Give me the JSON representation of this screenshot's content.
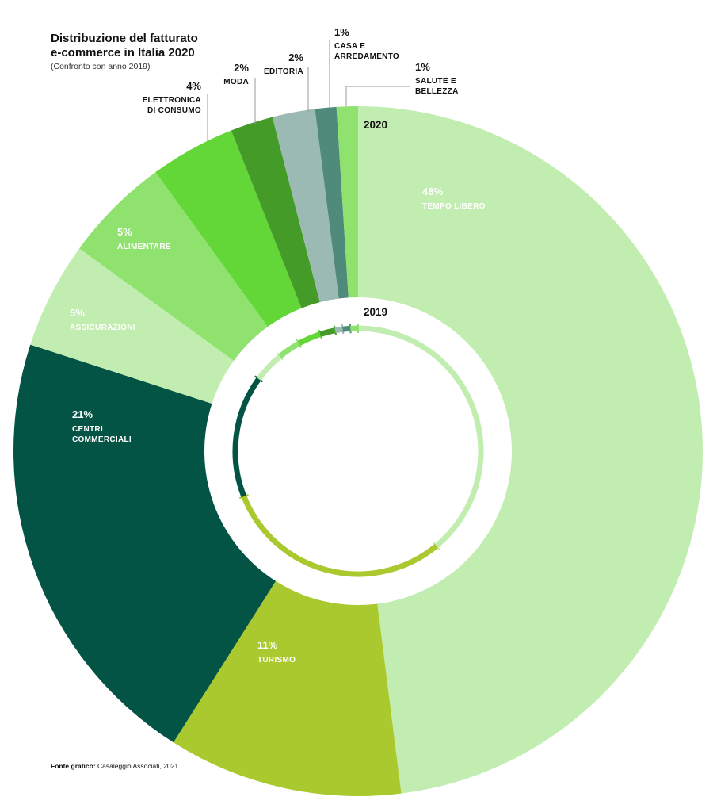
{
  "title_line1": "Distribuzione del fatturato",
  "title_line2": "e-commerce in Italia 2020",
  "subtitle": "(Confronto con anno 2019)",
  "source_label": "Fonte grafico:",
  "source_text": "Casaleggio Associati, 2021.",
  "chart_data": {
    "type": "pie",
    "variant": "donut",
    "outer_ring_label": "2020",
    "inner_ring_label": "2019",
    "slices_2020": [
      {
        "label": "TEMPO LIBERO",
        "pct_label": "48%",
        "value": 48,
        "color": "#c2edb0",
        "text_color": "#ffffff"
      },
      {
        "label": "TURISMO",
        "pct_label": "11%",
        "value": 11,
        "color": "#a9c92e",
        "text_color": "#ffffff"
      },
      {
        "label": "CENTRI COMMERCIALI",
        "pct_label": "21%",
        "value": 21,
        "color": "#035444",
        "text_color": "#ffffff"
      },
      {
        "label": "ASSICURAZIONI",
        "pct_label": "5%",
        "value": 5,
        "color": "#c2edb0",
        "text_color": "#ffffff"
      },
      {
        "label": "ALIMENTARE",
        "pct_label": "5%",
        "value": 5,
        "color": "#90e26e",
        "text_color": "#ffffff"
      },
      {
        "label": "ELETTRONICA DI CONSUMO",
        "pct_label": "4%",
        "value": 4,
        "color": "#63d638",
        "text_color": "#111111"
      },
      {
        "label": "MODA",
        "pct_label": "2%",
        "value": 2,
        "color": "#449b28",
        "text_color": "#111111"
      },
      {
        "label": "EDITORIA",
        "pct_label": "2%",
        "value": 2,
        "color": "#9bbab3",
        "text_color": "#111111"
      },
      {
        "label": "CASA E ARREDAMENTO",
        "pct_label": "1%",
        "value": 1,
        "color": "#4f8a7a",
        "text_color": "#111111"
      },
      {
        "label": "SALUTE E BELLEZZA",
        "pct_label": "1%",
        "value": 1,
        "color": "#90e26e",
        "text_color": "#111111"
      }
    ],
    "slices_2019": [
      {
        "category": "TEMPO LIBERO",
        "value": 39,
        "color": "#c2edb0"
      },
      {
        "category": "TURISMO",
        "value": 30,
        "color": "#a9c92e"
      },
      {
        "category": "CENTRI COMMERCIALI",
        "value": 16,
        "color": "#035444"
      },
      {
        "category": "ASSICURAZIONI",
        "value": 4,
        "color": "#c2edb0"
      },
      {
        "category": "ALIMENTARE",
        "value": 3,
        "color": "#90e26e"
      },
      {
        "category": "ELETTRONICA DI CONSUMO",
        "value": 3,
        "color": "#63d638"
      },
      {
        "category": "MODA",
        "value": 2,
        "color": "#449b28"
      },
      {
        "category": "EDITORIA",
        "value": 1,
        "color": "#9bbab3"
      },
      {
        "category": "CASA E ARREDAMENTO",
        "value": 1,
        "color": "#4f8a7a"
      },
      {
        "category": "SALUTE E BELLEZZA",
        "value": 1,
        "color": "#90e26e"
      }
    ]
  }
}
